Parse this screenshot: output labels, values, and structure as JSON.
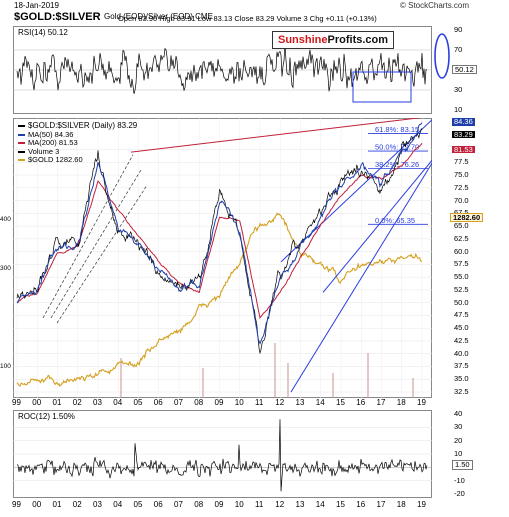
{
  "header": {
    "date": "18-Jan-2019",
    "title": "$GOLD:$SILVER",
    "subtitle": "Gold (EOD)/Silver (EOD)  CME",
    "ohlc": "Open 83.90  High 83.91  Low 83.13  Close 83.29  Volume 3  Chg +0.11 (+0.13%)",
    "watermark": "© StockCharts.com"
  },
  "logo": {
    "part1": "Sunshine",
    "part2": "Profits.com"
  },
  "rsi": {
    "label": "RSI(14) 50.12",
    "current": "50.12",
    "ticks": [
      "90",
      "70",
      "50",
      "30",
      "10"
    ]
  },
  "main": {
    "legend": [
      {
        "text": "$GOLD:$SILVER (Daily) 83.29",
        "color": "#000000"
      },
      {
        "text": "MA(50) 84.36",
        "color": "#1f3fa8"
      },
      {
        "text": "MA(200) 81.53",
        "color": "#c0203a"
      },
      {
        "text": "Volume 3",
        "color": "#000000"
      },
      {
        "text": "$GOLD 1282.60",
        "color": "#d4a020"
      }
    ],
    "y_ticks": [
      "80.0",
      "77.5",
      "75.0",
      "72.5",
      "70.0",
      "67.5",
      "65.0",
      "62.5",
      "60.0",
      "57.5",
      "55.0",
      "52.5",
      "50.0",
      "47.5",
      "45.0",
      "42.5",
      "40.0",
      "37.5",
      "35.0",
      "32.5"
    ],
    "left_ticks": [
      "400",
      "300",
      "100"
    ],
    "price_tags": {
      "close": "83.29",
      "ma50": "84.36",
      "ma200": "81.53",
      "gold": "1282.60"
    },
    "fib_labels": [
      "61.8%: 83.15",
      "50.0%: 79.70",
      "38.2%: 76.26",
      "0.0%: 65.35"
    ]
  },
  "roc": {
    "label": "ROC(12) 1.50%",
    "current": "1.50",
    "ticks": [
      "40",
      "30",
      "20",
      "10",
      "0",
      "-10",
      "-20"
    ]
  },
  "x_axis": {
    "labels": [
      "99",
      "00",
      "01",
      "02",
      "03",
      "04",
      "05",
      "06",
      "07",
      "08",
      "09",
      "10",
      "11",
      "12",
      "13",
      "14",
      "15",
      "16",
      "17",
      "18",
      "19"
    ]
  },
  "chart_data": {
    "type": "line",
    "title": "$GOLD:$SILVER",
    "x": [
      "1999",
      "2000",
      "2001",
      "2002",
      "2003",
      "2004",
      "2005",
      "2006",
      "2007",
      "2008",
      "2009",
      "2010",
      "2011",
      "2012",
      "2013",
      "2014",
      "2015",
      "2016",
      "2017",
      "2018",
      "2019"
    ],
    "series": [
      {
        "name": "$GOLD:$SILVER",
        "values": [
          51,
          53,
          62,
          62,
          79,
          64,
          62,
          55,
          53,
          54,
          72,
          63,
          41,
          55,
          62,
          68,
          74,
          76,
          72,
          80,
          83.29
        ]
      },
      {
        "name": "MA(50)",
        "values": [
          50,
          53,
          61,
          62,
          77,
          65,
          62,
          56,
          53,
          53,
          70,
          64,
          43,
          54,
          61,
          67,
          73,
          76,
          73,
          79,
          84.36
        ]
      },
      {
        "name": "MA(200)",
        "values": [
          50,
          52,
          60,
          61,
          74,
          68,
          63,
          58,
          54,
          52,
          67,
          66,
          47,
          52,
          59,
          65,
          71,
          75,
          74,
          77,
          81.53
        ]
      },
      {
        "name": "$GOLD",
        "values": [
          280,
          285,
          270,
          310,
          360,
          410,
          440,
          620,
          700,
          870,
          1000,
          1250,
          1580,
          1660,
          1300,
          1260,
          1110,
          1240,
          1260,
          1280,
          1282.6
        ]
      }
    ],
    "ylim": [
      32.5,
      85
    ],
    "rsi": {
      "name": "RSI(14)",
      "last": 50.12,
      "ylim": [
        10,
        90
      ]
    },
    "roc": {
      "name": "ROC(12)",
      "last": 1.5,
      "ylim": [
        -20,
        40
      ]
    }
  },
  "colors": {
    "ratio": "#000000",
    "ma50": "#1f3fa8",
    "ma200": "#c0203a",
    "gold": "#d4a020",
    "channel": "#2a3de0",
    "logo_red": "#d01818"
  }
}
